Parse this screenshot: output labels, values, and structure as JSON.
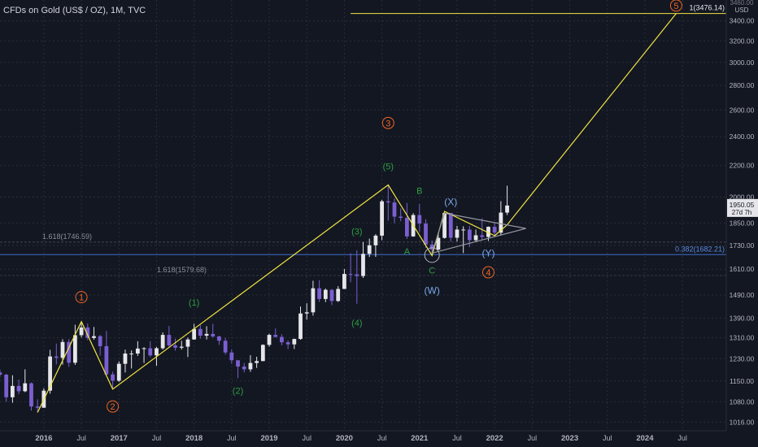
{
  "header": {
    "title": "CFDs on Gold (US$ / OZ), 1M, TVC"
  },
  "price_axis": {
    "currency": "USD",
    "top_clipped": "3460.00"
  },
  "last_price": {
    "value": "1950.05",
    "countdown": "27d 7h"
  },
  "colors": {
    "background": "#131722",
    "bull_candle": "#e6e6ea",
    "bear_candle": "#7b5fd1",
    "wave_line": "#f0e442",
    "fib_line": "#3d6fc8",
    "triangle": "#9598a1",
    "primary_wave": "#f06522",
    "intermediate_wave": "#2e9e42",
    "minor_wave": "#7ba7e8"
  },
  "chart_data": {
    "type": "candlestick",
    "title": "CFDs on Gold (US$ / OZ), 1M, TVC",
    "y_scale": "log",
    "ylim": [
      990,
      3620
    ],
    "xlim": [
      "2015-06",
      "2025-02"
    ],
    "y_ticks": [
      "3400.00",
      "3200.00",
      "3000.00",
      "2800.00",
      "2600.00",
      "2400.00",
      "2200.00",
      "2000.00",
      "1850.00",
      "1730.00",
      "1610.00",
      "1490.00",
      "1390.00",
      "1310.00",
      "1230.00",
      "1150.00",
      "1080.00",
      "1016.00"
    ],
    "x_ticks": [
      {
        "date": "2016-01",
        "label": "2016"
      },
      {
        "date": "2016-07",
        "label": "Jul"
      },
      {
        "date": "2017-01",
        "label": "2017"
      },
      {
        "date": "2017-07",
        "label": "Jul"
      },
      {
        "date": "2018-01",
        "label": "2018"
      },
      {
        "date": "2018-07",
        "label": "Jul"
      },
      {
        "date": "2019-01",
        "label": "2019"
      },
      {
        "date": "2019-07",
        "label": "Jul"
      },
      {
        "date": "2020-01",
        "label": "2020"
      },
      {
        "date": "2020-07",
        "label": "Jul"
      },
      {
        "date": "2021-01",
        "label": "2021"
      },
      {
        "date": "2021-07",
        "label": "Jul"
      },
      {
        "date": "2022-01",
        "label": "2022"
      },
      {
        "date": "2022-07",
        "label": "Jul"
      },
      {
        "date": "2023-01",
        "label": "2023"
      },
      {
        "date": "2023-07",
        "label": "Jul"
      },
      {
        "date": "2024-01",
        "label": "2024"
      },
      {
        "date": "2024-07",
        "label": "Jul"
      }
    ],
    "candles": [
      [
        "2015-06",
        1180,
        1190,
        1165,
        1172
      ],
      [
        "2015-07",
        1172,
        1175,
        1080,
        1095
      ],
      [
        "2015-08",
        1095,
        1170,
        1077,
        1133
      ],
      [
        "2015-09",
        1133,
        1155,
        1105,
        1115
      ],
      [
        "2015-10",
        1115,
        1191,
        1112,
        1142
      ],
      [
        "2015-11",
        1142,
        1145,
        1052,
        1065
      ],
      [
        "2015-12",
        1065,
        1088,
        1046,
        1061
      ],
      [
        "2016-01",
        1061,
        1125,
        1061,
        1117
      ],
      [
        "2016-02",
        1117,
        1263,
        1107,
        1238
      ],
      [
        "2016-03",
        1238,
        1287,
        1209,
        1233
      ],
      [
        "2016-04",
        1233,
        1304,
        1208,
        1293
      ],
      [
        "2016-05",
        1293,
        1304,
        1200,
        1215
      ],
      [
        "2016-06",
        1215,
        1362,
        1207,
        1320
      ],
      [
        "2016-07",
        1320,
        1375,
        1311,
        1351
      ],
      [
        "2016-08",
        1351,
        1367,
        1300,
        1309
      ],
      [
        "2016-09",
        1309,
        1353,
        1302,
        1316
      ],
      [
        "2016-10",
        1316,
        1321,
        1241,
        1277
      ],
      [
        "2016-11",
        1277,
        1337,
        1171,
        1173
      ],
      [
        "2016-12",
        1173,
        1183,
        1122,
        1151
      ],
      [
        "2017-01",
        1151,
        1220,
        1147,
        1211
      ],
      [
        "2017-02",
        1211,
        1264,
        1180,
        1249
      ],
      [
        "2017-03",
        1249,
        1261,
        1194,
        1249
      ],
      [
        "2017-04",
        1249,
        1296,
        1240,
        1268
      ],
      [
        "2017-05",
        1268,
        1273,
        1214,
        1269
      ],
      [
        "2017-06",
        1269,
        1296,
        1236,
        1242
      ],
      [
        "2017-07",
        1242,
        1274,
        1204,
        1269
      ],
      [
        "2017-08",
        1269,
        1331,
        1264,
        1321
      ],
      [
        "2017-09",
        1321,
        1357,
        1271,
        1280
      ],
      [
        "2017-10",
        1280,
        1306,
        1260,
        1271
      ],
      [
        "2017-11",
        1271,
        1298,
        1264,
        1275
      ],
      [
        "2017-12",
        1275,
        1310,
        1236,
        1303
      ],
      [
        "2018-01",
        1303,
        1366,
        1302,
        1345
      ],
      [
        "2018-02",
        1345,
        1361,
        1306,
        1318
      ],
      [
        "2018-03",
        1318,
        1356,
        1303,
        1325
      ],
      [
        "2018-04",
        1325,
        1366,
        1310,
        1315
      ],
      [
        "2018-05",
        1315,
        1318,
        1282,
        1298
      ],
      [
        "2018-06",
        1298,
        1309,
        1245,
        1253
      ],
      [
        "2018-07",
        1253,
        1265,
        1211,
        1224
      ],
      [
        "2018-08",
        1224,
        1217,
        1160,
        1201
      ],
      [
        "2018-09",
        1201,
        1214,
        1180,
        1191
      ],
      [
        "2018-10",
        1191,
        1243,
        1182,
        1214
      ],
      [
        "2018-11",
        1214,
        1237,
        1196,
        1221
      ],
      [
        "2018-12",
        1221,
        1284,
        1221,
        1282
      ],
      [
        "2019-01",
        1282,
        1326,
        1275,
        1321
      ],
      [
        "2019-02",
        1321,
        1347,
        1311,
        1313
      ],
      [
        "2019-03",
        1313,
        1324,
        1280,
        1292
      ],
      [
        "2019-04",
        1292,
        1299,
        1266,
        1284
      ],
      [
        "2019-05",
        1284,
        1306,
        1266,
        1305
      ],
      [
        "2019-06",
        1305,
        1439,
        1302,
        1409
      ],
      [
        "2019-07",
        1409,
        1453,
        1383,
        1414
      ],
      [
        "2019-08",
        1414,
        1555,
        1400,
        1520
      ],
      [
        "2019-09",
        1520,
        1557,
        1459,
        1472
      ],
      [
        "2019-10",
        1472,
        1519,
        1458,
        1513
      ],
      [
        "2019-11",
        1513,
        1517,
        1445,
        1463
      ],
      [
        "2019-12",
        1463,
        1530,
        1459,
        1517
      ],
      [
        "2020-01",
        1517,
        1611,
        1517,
        1587
      ],
      [
        "2020-02",
        1587,
        1689,
        1548,
        1585
      ],
      [
        "2020-03",
        1585,
        1704,
        1451,
        1577
      ],
      [
        "2020-04",
        1577,
        1747,
        1568,
        1686
      ],
      [
        "2020-05",
        1686,
        1765,
        1670,
        1730
      ],
      [
        "2020-06",
        1730,
        1789,
        1671,
        1781
      ],
      [
        "2020-07",
        1781,
        1984,
        1757,
        1975
      ],
      [
        "2020-08",
        1975,
        2075,
        1863,
        1968
      ],
      [
        "2020-09",
        1968,
        1992,
        1848,
        1886
      ],
      [
        "2020-10",
        1886,
        1933,
        1860,
        1879
      ],
      [
        "2020-11",
        1879,
        1965,
        1764,
        1777
      ],
      [
        "2020-12",
        1777,
        1906,
        1775,
        1895
      ],
      [
        "2021-01",
        1895,
        1959,
        1802,
        1847
      ],
      [
        "2021-02",
        1847,
        1871,
        1717,
        1734
      ],
      [
        "2021-03",
        1734,
        1755,
        1677,
        1708
      ],
      [
        "2021-04",
        1708,
        1798,
        1705,
        1769
      ],
      [
        "2021-05",
        1769,
        1916,
        1765,
        1907
      ],
      [
        "2021-06",
        1907,
        1903,
        1750,
        1770
      ],
      [
        "2021-07",
        1770,
        1834,
        1750,
        1814
      ],
      [
        "2021-08",
        1814,
        1832,
        1690,
        1814
      ],
      [
        "2021-09",
        1814,
        1834,
        1721,
        1757
      ],
      [
        "2021-10",
        1757,
        1814,
        1746,
        1783
      ],
      [
        "2021-11",
        1783,
        1877,
        1759,
        1774
      ],
      [
        "2021-12",
        1774,
        1831,
        1753,
        1829
      ],
      [
        "2022-01",
        1829,
        1853,
        1781,
        1797
      ],
      [
        "2022-02",
        1797,
        1976,
        1781,
        1909
      ],
      [
        "2022-03",
        1909,
        2070,
        1895,
        1950
      ]
    ],
    "wave_path": [
      [
        "2015-12",
        1046
      ],
      [
        "2016-07",
        1375
      ],
      [
        "2016-12",
        1122
      ],
      [
        "2020-08",
        2075
      ],
      [
        "2021-03",
        1677
      ],
      [
        "2021-05",
        1916
      ],
      [
        "2022-01",
        1781
      ],
      [
        "2022-03",
        1840
      ],
      [
        "2024-06",
        3476.14
      ]
    ],
    "triangle": [
      [
        "2021-05",
        1905
      ],
      [
        "2022-06",
        1820
      ],
      [
        "2021-03",
        1690
      ]
    ],
    "levels": [
      {
        "label": "1(3476.14)",
        "value": 3476.14,
        "from": "2020-02"
      },
      {
        "label": "1.618(1746.59)",
        "value": 1746.59,
        "from": "2015-06"
      },
      {
        "label": "1.618(1579.68)",
        "value": 1579.68,
        "from": "2015-06"
      },
      {
        "label": "0.382(1682.21)",
        "value": 1682.21,
        "from": "2015-06"
      }
    ],
    "wave_labels": [
      {
        "text": "1",
        "date": "2016-07",
        "y": 1480,
        "type": "circle"
      },
      {
        "text": "2",
        "date": "2016-12",
        "y": 1065,
        "type": "circle"
      },
      {
        "text": "3",
        "date": "2020-08",
        "y": 2500,
        "type": "circle"
      },
      {
        "text": "4",
        "date": "2021-12",
        "y": 1595,
        "type": "circle"
      },
      {
        "text": "5",
        "date": "2024-06",
        "y": 3560,
        "type": "circle"
      },
      {
        "text": "(1)",
        "date": "2018-01",
        "y": 1458,
        "type": "intermediate"
      },
      {
        "text": "(2)",
        "date": "2018-08",
        "y": 1118,
        "type": "intermediate"
      },
      {
        "text": "(3)",
        "date": "2020-03",
        "y": 1805,
        "type": "intermediate"
      },
      {
        "text": "(4)",
        "date": "2020-03",
        "y": 1370,
        "type": "intermediate"
      },
      {
        "text": "(5)",
        "date": "2020-08",
        "y": 2195,
        "type": "intermediate"
      },
      {
        "text": "A",
        "date": "2020-11",
        "y": 1700,
        "type": "intermediate"
      },
      {
        "text": "B",
        "date": "2021-01",
        "y": 2040,
        "type": "intermediate"
      },
      {
        "text": "C",
        "date": "2021-03",
        "y": 1605,
        "type": "intermediate"
      },
      {
        "text": "(X)",
        "date": "2021-06",
        "y": 1970,
        "type": "minor"
      },
      {
        "text": "(Y)",
        "date": "2021-12",
        "y": 1690,
        "type": "minor"
      },
      {
        "text": "(W)",
        "date": "2021-03",
        "y": 1510,
        "type": "minor"
      }
    ]
  }
}
